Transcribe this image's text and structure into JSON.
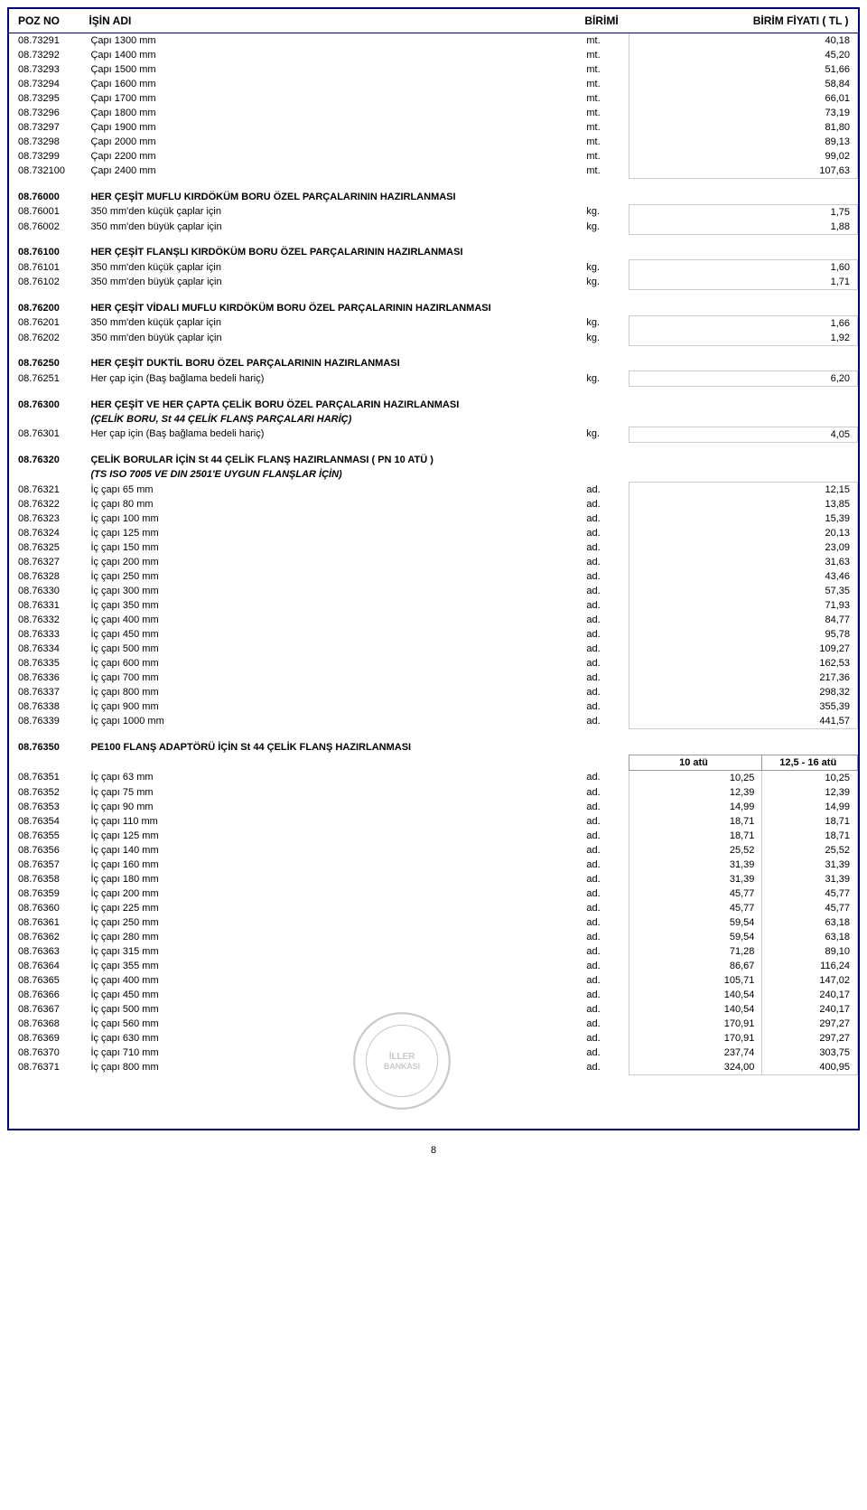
{
  "header": {
    "poz": "POZ NO",
    "desc": "İŞİN  ADI",
    "unit": "BİRİMİ",
    "price": "BİRİM FİYATI   ( TL )"
  },
  "sec1": {
    "rows": [
      {
        "poz": "08.73291",
        "desc": "Çapı    1300  mm",
        "unit": "mt.",
        "price": "40,18"
      },
      {
        "poz": "08.73292",
        "desc": "Çapı    1400  mm",
        "unit": "mt.",
        "price": "45,20"
      },
      {
        "poz": "08.73293",
        "desc": "Çapı    1500  mm",
        "unit": "mt.",
        "price": "51,66"
      },
      {
        "poz": "08.73294",
        "desc": "Çapı    1600  mm",
        "unit": "mt.",
        "price": "58,84"
      },
      {
        "poz": "08.73295",
        "desc": "Çapı    1700  mm",
        "unit": "mt.",
        "price": "66,01"
      },
      {
        "poz": "08.73296",
        "desc": "Çapı    1800  mm",
        "unit": "mt.",
        "price": "73,19"
      },
      {
        "poz": "08.73297",
        "desc": "Çapı    1900  mm",
        "unit": "mt.",
        "price": "81,80"
      },
      {
        "poz": "08.73298",
        "desc": "Çapı    2000  mm",
        "unit": "mt.",
        "price": "89,13"
      },
      {
        "poz": "08.73299",
        "desc": "Çapı    2200  mm",
        "unit": "mt.",
        "price": "99,02"
      },
      {
        "poz": "08.732100",
        "desc": "Çapı    2400  mm",
        "unit": "mt.",
        "price": "107,63"
      }
    ]
  },
  "sec2": {
    "title_poz": "08.76000",
    "title": "HER ÇEŞİT MUFLU KIRDÖKÜM BORU ÖZEL PARÇALARININ HAZIRLANMASI",
    "rows": [
      {
        "poz": "08.76001",
        "desc": "350 mm'den küçük çaplar için",
        "unit": "kg.",
        "price": "1,75"
      },
      {
        "poz": "08.76002",
        "desc": "350 mm'den büyük çaplar için",
        "unit": "kg.",
        "price": "1,88"
      }
    ]
  },
  "sec3": {
    "title_poz": "08.76100",
    "title": "HER ÇEŞİT FLANŞLI KIRDÖKÜM BORU ÖZEL PARÇALARININ HAZIRLANMASI",
    "rows": [
      {
        "poz": "08.76101",
        "desc": "350 mm'den küçük çaplar için",
        "unit": "kg.",
        "price": "1,60"
      },
      {
        "poz": "08.76102",
        "desc": "350 mm'den büyük çaplar için",
        "unit": "kg.",
        "price": "1,71"
      }
    ]
  },
  "sec4": {
    "title_poz": "08.76200",
    "title": "HER ÇEŞİT VİDALI  MUFLU KIRDÖKÜM BORU ÖZEL PARÇALARININ HAZIRLANMASI",
    "rows": [
      {
        "poz": "08.76201",
        "desc": "350 mm'den küçük çaplar için",
        "unit": "kg.",
        "price": "1,66"
      },
      {
        "poz": "08.76202",
        "desc": "350 mm'den büyük çaplar için",
        "unit": "kg.",
        "price": "1,92"
      }
    ]
  },
  "sec5": {
    "title_poz": "08.76250",
    "title": "HER ÇEŞİT DUKTİL BORU ÖZEL PARÇALARININ HAZIRLANMASI",
    "rows": [
      {
        "poz": "08.76251",
        "desc": "Her çap için  (Baş bağlama bedeli hariç)",
        "unit": "kg.",
        "price": "6,20"
      }
    ]
  },
  "sec6": {
    "title_poz": "08.76300",
    "title": "HER ÇEŞİT VE HER ÇAPTA ÇELİK BORU ÖZEL PARÇALARIN HAZIRLANMASI",
    "subtitle": "(ÇELİK BORU, St 44 ÇELİK FLANŞ PARÇALARI HARİÇ)",
    "rows": [
      {
        "poz": "08.76301",
        "desc": "Her çap için  (Baş bağlama bedeli hariç)",
        "unit": "kg.",
        "price": "4,05"
      }
    ]
  },
  "sec7": {
    "title_poz": "08.76320",
    "title": "ÇELİK BORULAR İÇİN St 44 ÇELİK FLANŞ HAZIRLANMASI     ( PN 10 ATÜ )",
    "subtitle": "(TS ISO 7005 VE DIN 2501'E UYGUN FLANŞLAR İÇİN)",
    "rows": [
      {
        "poz": "08.76321",
        "desc": "İç çapı       65  mm",
        "unit": "ad.",
        "price": "12,15"
      },
      {
        "poz": "08.76322",
        "desc": "İç çapı       80  mm",
        "unit": "ad.",
        "price": "13,85"
      },
      {
        "poz": "08.76323",
        "desc": "İç çapı     100  mm",
        "unit": "ad.",
        "price": "15,39"
      },
      {
        "poz": "08.76324",
        "desc": "İç çapı     125  mm",
        "unit": "ad.",
        "price": "20,13"
      },
      {
        "poz": "08.76325",
        "desc": "İç çapı     150  mm",
        "unit": "ad.",
        "price": "23,09"
      },
      {
        "poz": "08.76327",
        "desc": "İç çapı     200  mm",
        "unit": "ad.",
        "price": "31,63"
      },
      {
        "poz": "08.76328",
        "desc": "İç çapı     250  mm",
        "unit": "ad.",
        "price": "43,46"
      },
      {
        "poz": "08.76330",
        "desc": "İç çapı     300  mm",
        "unit": "ad.",
        "price": "57,35"
      },
      {
        "poz": "08.76331",
        "desc": "İç çapı     350  mm",
        "unit": "ad.",
        "price": "71,93"
      },
      {
        "poz": "08.76332",
        "desc": "İç çapı     400  mm",
        "unit": "ad.",
        "price": "84,77"
      },
      {
        "poz": "08.76333",
        "desc": "İç çapı     450  mm",
        "unit": "ad.",
        "price": "95,78"
      },
      {
        "poz": "08.76334",
        "desc": "İç çapı     500  mm",
        "unit": "ad.",
        "price": "109,27"
      },
      {
        "poz": "08.76335",
        "desc": "İç çapı     600  mm",
        "unit": "ad.",
        "price": "162,53"
      },
      {
        "poz": "08.76336",
        "desc": "İç çapı     700  mm",
        "unit": "ad.",
        "price": "217,36"
      },
      {
        "poz": "08.76337",
        "desc": "İç çapı     800  mm",
        "unit": "ad.",
        "price": "298,32"
      },
      {
        "poz": "08.76338",
        "desc": "İç çapı     900  mm",
        "unit": "ad.",
        "price": "355,39"
      },
      {
        "poz": "08.76339",
        "desc": "İç çapı   1000  mm",
        "unit": "ad.",
        "price": "441,57"
      }
    ]
  },
  "sec8": {
    "title_poz": "08.76350",
    "title": "PE100  FLANŞ ADAPTÖRÜ İÇİN St 44 ÇELİK FLANŞ HAZIRLANMASI",
    "col1": "10 atü",
    "col2": "12,5 - 16 atü",
    "rows": [
      {
        "poz": "08.76351",
        "desc": "İç çapı       63  mm",
        "unit": "ad.",
        "p1": "10,25",
        "p2": "10,25"
      },
      {
        "poz": "08.76352",
        "desc": "İç çapı       75  mm",
        "unit": "ad.",
        "p1": "12,39",
        "p2": "12,39"
      },
      {
        "poz": "08.76353",
        "desc": "İç çapı       90  mm",
        "unit": "ad.",
        "p1": "14,99",
        "p2": "14,99"
      },
      {
        "poz": "08.76354",
        "desc": "İç çapı     110  mm",
        "unit": "ad.",
        "p1": "18,71",
        "p2": "18,71"
      },
      {
        "poz": "08.76355",
        "desc": "İç çapı     125  mm",
        "unit": "ad.",
        "p1": "18,71",
        "p2": "18,71"
      },
      {
        "poz": "08.76356",
        "desc": "İç çapı     140  mm",
        "unit": "ad.",
        "p1": "25,52",
        "p2": "25,52"
      },
      {
        "poz": "08.76357",
        "desc": "İç çapı     160  mm",
        "unit": "ad.",
        "p1": "31,39",
        "p2": "31,39"
      },
      {
        "poz": "08.76358",
        "desc": "İç çapı     180  mm",
        "unit": "ad.",
        "p1": "31,39",
        "p2": "31,39"
      },
      {
        "poz": "08.76359",
        "desc": "İç çapı     200  mm",
        "unit": "ad.",
        "p1": "45,77",
        "p2": "45,77"
      },
      {
        "poz": "08.76360",
        "desc": "İç çapı     225  mm",
        "unit": "ad.",
        "p1": "45,77",
        "p2": "45,77"
      },
      {
        "poz": "08.76361",
        "desc": "İç çapı     250  mm",
        "unit": "ad.",
        "p1": "59,54",
        "p2": "63,18"
      },
      {
        "poz": "08.76362",
        "desc": "İç çapı     280  mm",
        "unit": "ad.",
        "p1": "59,54",
        "p2": "63,18"
      },
      {
        "poz": "08.76363",
        "desc": "İç çapı     315  mm",
        "unit": "ad.",
        "p1": "71,28",
        "p2": "89,10"
      },
      {
        "poz": "08.76364",
        "desc": "İç çapı     355  mm",
        "unit": "ad.",
        "p1": "86,67",
        "p2": "116,24"
      },
      {
        "poz": "08.76365",
        "desc": "İç çapı     400  mm",
        "unit": "ad.",
        "p1": "105,71",
        "p2": "147,02"
      },
      {
        "poz": "08.76366",
        "desc": "İç çapı     450  mm",
        "unit": "ad.",
        "p1": "140,54",
        "p2": "240,17"
      },
      {
        "poz": "08.76367",
        "desc": "İç çapı     500  mm",
        "unit": "ad.",
        "p1": "140,54",
        "p2": "240,17"
      },
      {
        "poz": "08.76368",
        "desc": "İç çapı     560  mm",
        "unit": "ad.",
        "p1": "170,91",
        "p2": "297,27"
      },
      {
        "poz": "08.76369",
        "desc": "İç çapı     630  mm",
        "unit": "ad.",
        "p1": "170,91",
        "p2": "297,27"
      },
      {
        "poz": "08.76370",
        "desc": "İç çapı     710  mm",
        "unit": "ad.",
        "p1": "237,74",
        "p2": "303,75"
      },
      {
        "poz": "08.76371",
        "desc": "İç çapı     800  mm",
        "unit": "ad.",
        "p1": "324,00",
        "p2": "400,95"
      }
    ]
  },
  "page_num": "8"
}
